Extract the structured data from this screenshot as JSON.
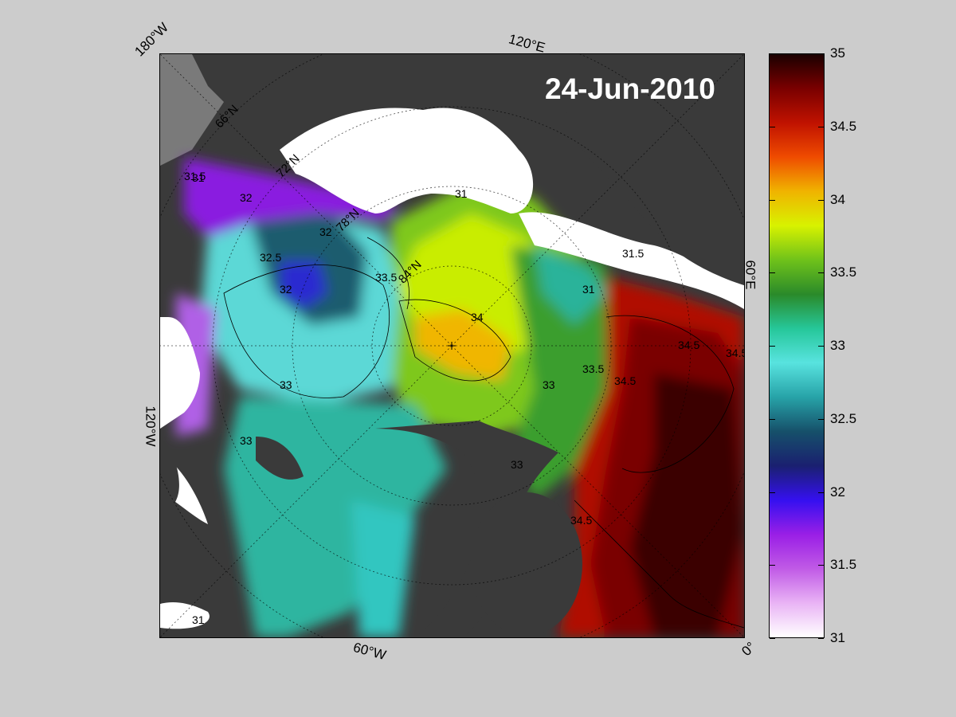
{
  "date": "24-Jun-2010",
  "longitude_labels": [
    "180°W",
    "120°E",
    "60°E",
    "0°",
    "60°W",
    "120°W"
  ],
  "latitude_labels": [
    "66°N",
    "72°N",
    "78°N",
    "84°N"
  ],
  "contour_labels": [
    "31",
    "31.5",
    "32",
    "32.5",
    "33",
    "33.5",
    "34",
    "34.5"
  ],
  "colorbar": {
    "ticks": [
      "35",
      "34.5",
      "34",
      "33.5",
      "33",
      "32.5",
      "32",
      "31.5",
      "31"
    ],
    "min": 31,
    "max": 35,
    "colors": [
      "#ffffff",
      "#e9b3f5",
      "#c05ae6",
      "#9a1fe6",
      "#3510f0",
      "#1a2070",
      "#16506a",
      "#27a3a8",
      "#58e3df",
      "#26c79a",
      "#2a8a2a",
      "#6fc21a",
      "#d8f200",
      "#f0b300",
      "#ef4b00",
      "#c01200",
      "#7a0000",
      "#1a0000"
    ]
  },
  "colors": {
    "ice": "#ffffff",
    "land": "#3a3a3a",
    "land_alt": "#6b6b6b",
    "background": "#cccccc"
  }
}
